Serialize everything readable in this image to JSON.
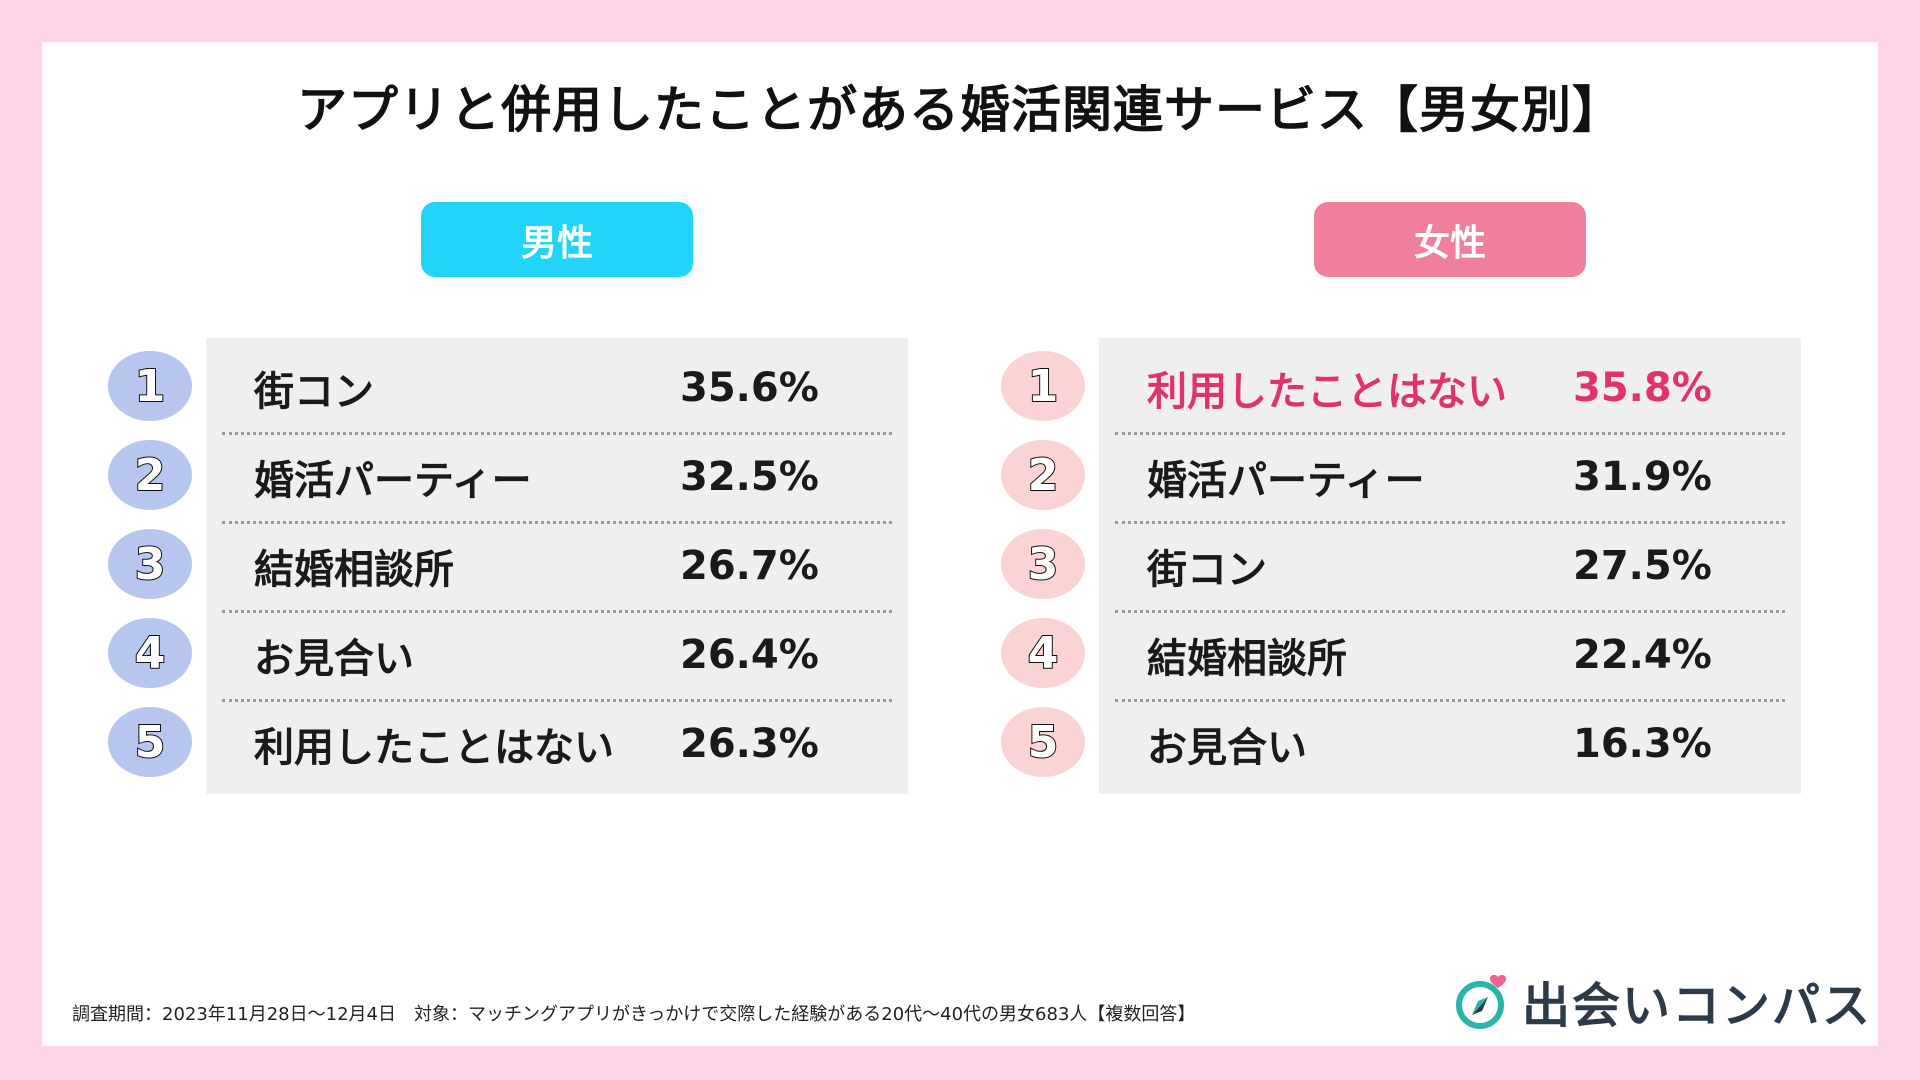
{
  "title": "アプリと併用したことがある婚活関連サービス【男女別】",
  "chart_data": {
    "type": "table",
    "title": "アプリと併用したことがある婚活関連サービス【男女別】",
    "groups": [
      {
        "name": "男性",
        "rows": [
          {
            "rank": "1",
            "item": "街コン",
            "value_label": "35.6%",
            "value": 35.6
          },
          {
            "rank": "2",
            "item": "婚活パーティー",
            "value_label": "32.5%",
            "value": 32.5
          },
          {
            "rank": "3",
            "item": "結婚相談所",
            "value_label": "26.7%",
            "value": 26.7
          },
          {
            "rank": "4",
            "item": "お見合い",
            "value_label": "26.4%",
            "value": 26.4
          },
          {
            "rank": "5",
            "item": "利用したことはない",
            "value_label": "26.3%",
            "value": 26.3
          }
        ]
      },
      {
        "name": "女性",
        "rows": [
          {
            "rank": "1",
            "item": "利用したことはない",
            "value_label": "35.8%",
            "value": 35.8,
            "highlight": true
          },
          {
            "rank": "2",
            "item": "婚活パーティー",
            "value_label": "31.9%",
            "value": 31.9
          },
          {
            "rank": "3",
            "item": "街コン",
            "value_label": "27.5%",
            "value": 27.5
          },
          {
            "rank": "4",
            "item": "結婚相談所",
            "value_label": "22.4%",
            "value": 22.4
          },
          {
            "rank": "5",
            "item": "お見合い",
            "value_label": "16.3%",
            "value": 16.3
          }
        ]
      }
    ]
  },
  "footnote": "調査期間：2023年11月28日〜12月4日　対象：マッチングアプリがきっかけで交際した経験がある20代〜40代の男女683人【複数回答】",
  "brand": {
    "name": "出会いコンパス",
    "logo_icon": "compass-heart-icon"
  },
  "colors": {
    "background": "#ffd4e6",
    "male_header": "#22d4f8",
    "female_header": "#f07f9c",
    "male_rank": "#b7c6ee",
    "female_rank": "#fad4d4",
    "highlight": "#e0336c"
  }
}
